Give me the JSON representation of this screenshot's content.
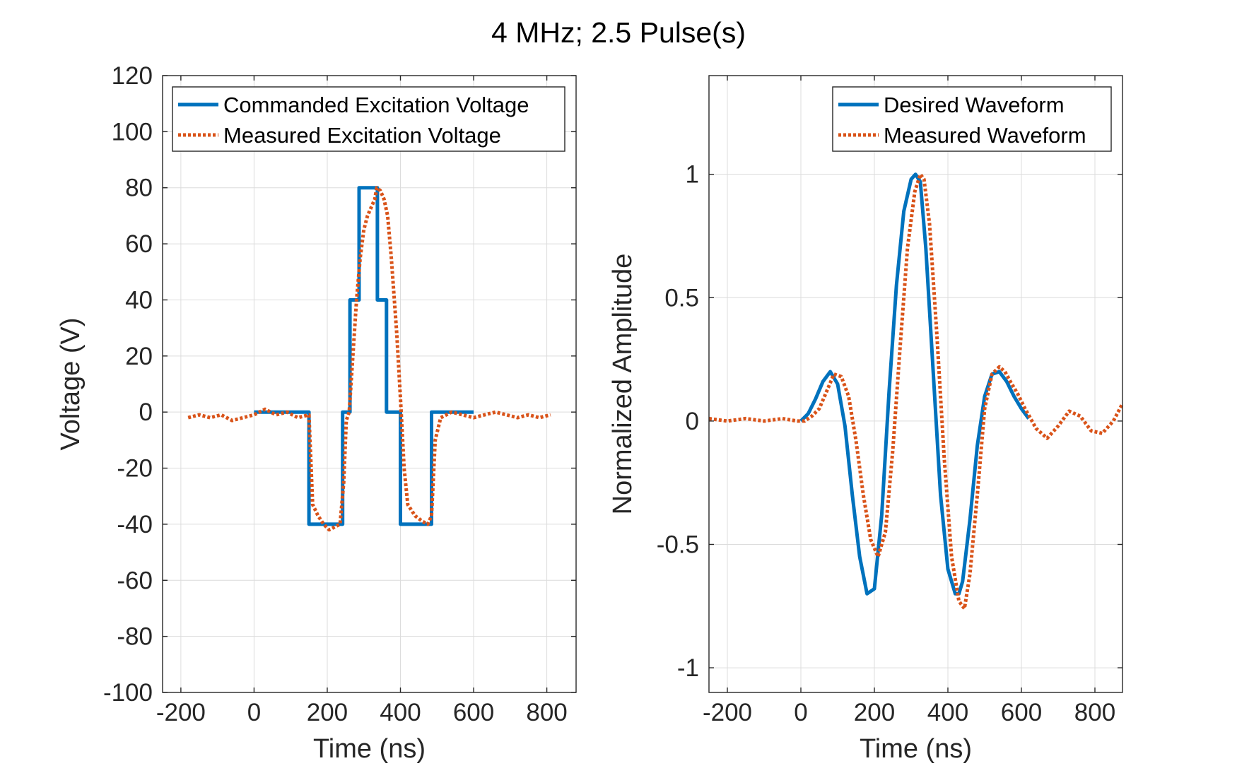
{
  "figure": {
    "title": "4 MHz; 2.5 Pulse(s)",
    "colors": {
      "commanded": "#0072BD",
      "measured": "#D95319"
    }
  },
  "chart_data": [
    {
      "type": "line",
      "xlabel": "Time (ns)",
      "ylabel": "Voltage (V)",
      "xlim": [
        -250,
        880
      ],
      "ylim": [
        -100,
        120
      ],
      "xticks": [
        -200,
        0,
        200,
        400,
        600,
        800
      ],
      "yticks": [
        -100,
        -80,
        -60,
        -40,
        -20,
        0,
        20,
        40,
        60,
        80,
        100,
        120
      ],
      "grid": true,
      "legend_position": "top-right",
      "series": [
        {
          "name": "Commanded Excitation Voltage",
          "style": "solid",
          "x": [
            0,
            150,
            150,
            242,
            242,
            262,
            262,
            287,
            287,
            337,
            337,
            362,
            362,
            385,
            385,
            400,
            400,
            485,
            485,
            600
          ],
          "y": [
            0,
            0,
            -40,
            -40,
            0,
            0,
            40,
            40,
            80,
            80,
            40,
            40,
            0,
            0,
            0,
            0,
            -40,
            -40,
            0,
            0
          ]
        },
        {
          "name": "Measured Excitation Voltage",
          "style": "dotted",
          "x": [
            -180,
            -150,
            -120,
            -90,
            -60,
            -30,
            0,
            30,
            60,
            90,
            120,
            150,
            160,
            175,
            190,
            205,
            220,
            235,
            245,
            252,
            260,
            270,
            280,
            290,
            300,
            310,
            320,
            330,
            335,
            345,
            355,
            365,
            375,
            390,
            400,
            410,
            420,
            440,
            460,
            475,
            485,
            495,
            510,
            540,
            570,
            600,
            630,
            660,
            690,
            720,
            750,
            780,
            810
          ],
          "y": [
            -2,
            -1,
            -2,
            -1,
            -3,
            -2,
            -1,
            1,
            -1,
            0,
            -2,
            -1,
            -33,
            -37,
            -40,
            -42,
            -41,
            -40,
            -25,
            -3,
            0,
            20,
            40,
            55,
            65,
            70,
            73,
            76,
            80,
            79,
            76,
            70,
            55,
            28,
            5,
            -20,
            -33,
            -37,
            -39,
            -40,
            -37,
            -10,
            -2,
            0,
            -1,
            -2,
            -1,
            0,
            -1,
            -2,
            -1,
            -2,
            -1
          ]
        }
      ]
    },
    {
      "type": "line",
      "xlabel": "Time (ns)",
      "ylabel": "Normalized Amplitude",
      "xlim": [
        -250,
        875
      ],
      "ylim": [
        -1.1,
        1.4
      ],
      "xticks": [
        -200,
        0,
        200,
        400,
        600,
        800
      ],
      "yticks": [
        -1,
        -0.5,
        0,
        0.5,
        1
      ],
      "grid": true,
      "legend_position": "top-right",
      "series": [
        {
          "name": "Desired Waveform",
          "style": "solid",
          "x": [
            0,
            20,
            40,
            60,
            80,
            100,
            120,
            140,
            160,
            180,
            200,
            220,
            240,
            260,
            280,
            300,
            312,
            325,
            340,
            360,
            380,
            400,
            420,
            430,
            440,
            460,
            480,
            500,
            520,
            540,
            560,
            580,
            600,
            620
          ],
          "y": [
            0.0,
            0.03,
            0.09,
            0.16,
            0.2,
            0.15,
            -0.02,
            -0.3,
            -0.55,
            -0.7,
            -0.68,
            -0.38,
            0.12,
            0.55,
            0.85,
            0.98,
            1.0,
            0.97,
            0.7,
            0.2,
            -0.3,
            -0.6,
            -0.7,
            -0.7,
            -0.65,
            -0.4,
            -0.1,
            0.1,
            0.19,
            0.2,
            0.16,
            0.1,
            0.05,
            0.01
          ]
        },
        {
          "name": "Measured Waveform",
          "style": "dotted",
          "x": [
            -250,
            -200,
            -150,
            -100,
            -50,
            -10,
            10,
            30,
            50,
            70,
            90,
            110,
            130,
            150,
            170,
            190,
            210,
            230,
            250,
            270,
            290,
            310,
            325,
            335,
            350,
            370,
            390,
            410,
            430,
            445,
            460,
            480,
            500,
            520,
            540,
            555,
            570,
            590,
            610,
            640,
            670,
            700,
            730,
            760,
            790,
            820,
            850,
            875
          ],
          "y": [
            0.01,
            0.0,
            0.01,
            0.0,
            0.01,
            0.0,
            0.0,
            0.02,
            0.05,
            0.12,
            0.19,
            0.18,
            0.1,
            -0.08,
            -0.3,
            -0.48,
            -0.55,
            -0.45,
            -0.12,
            0.3,
            0.7,
            0.93,
            1.0,
            0.98,
            0.8,
            0.35,
            -0.15,
            -0.55,
            -0.73,
            -0.76,
            -0.62,
            -0.3,
            0.05,
            0.19,
            0.22,
            0.2,
            0.16,
            0.11,
            0.05,
            -0.03,
            -0.07,
            -0.02,
            0.04,
            0.02,
            -0.04,
            -0.05,
            0.0,
            0.07
          ]
        }
      ]
    }
  ]
}
